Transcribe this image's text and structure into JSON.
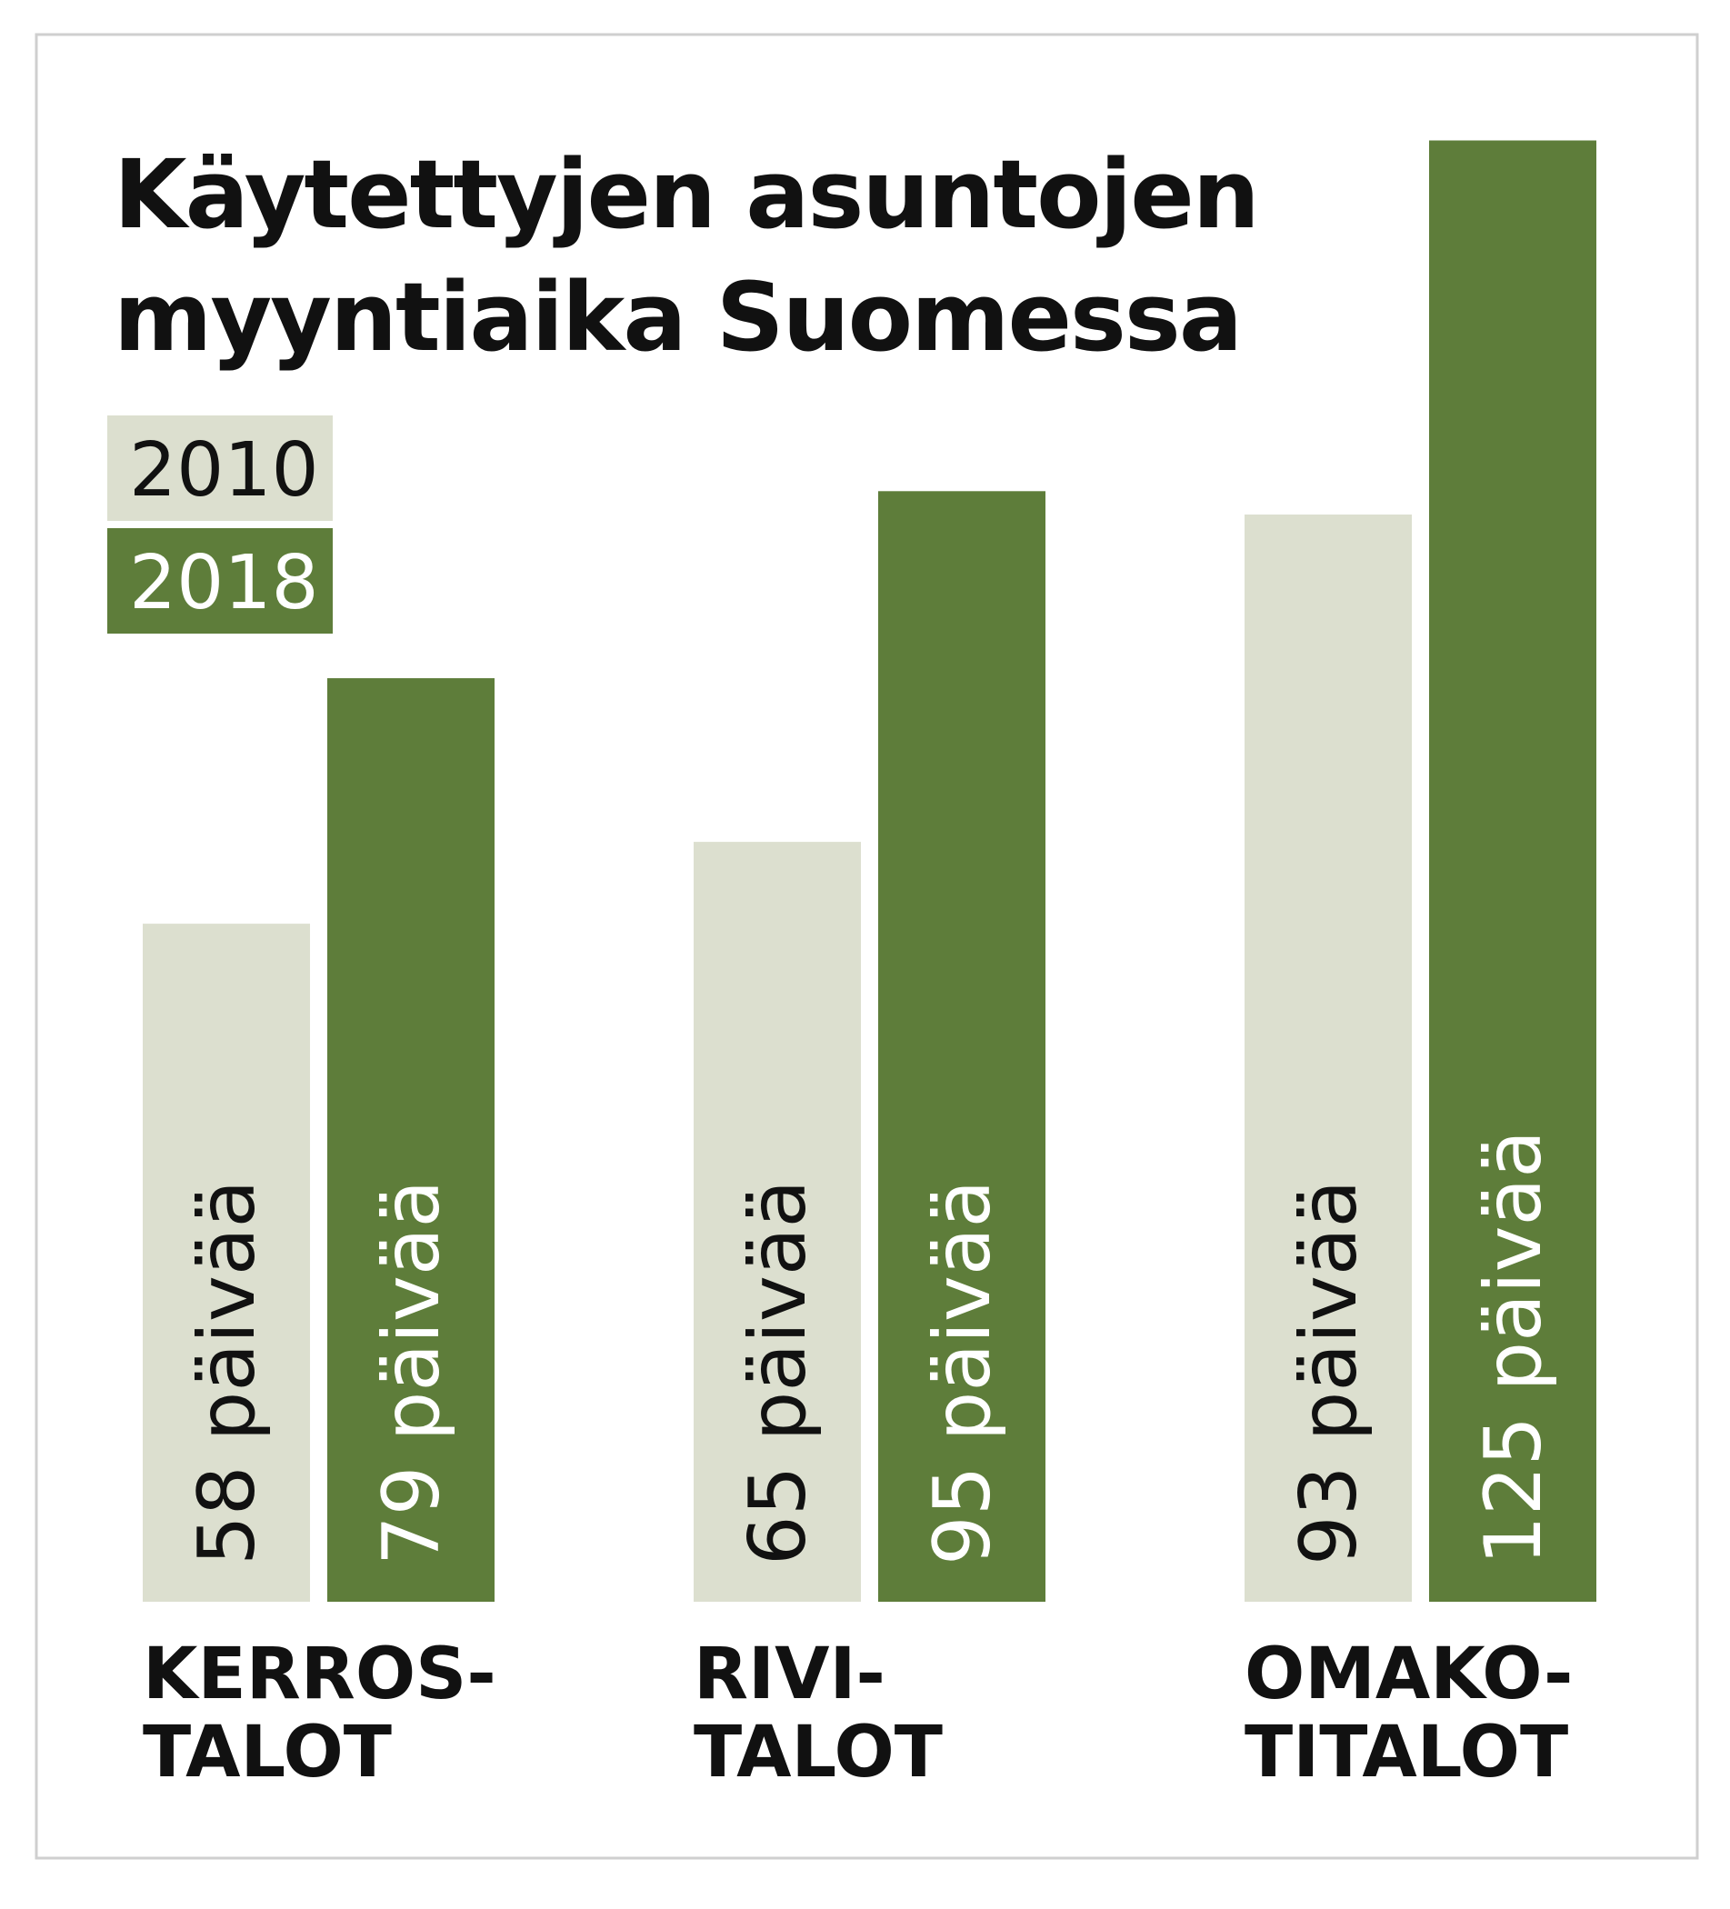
{
  "chart_data": {
    "type": "bar",
    "title": [
      "Käytettyjen asuntojen",
      "myyntiaika Suomessa"
    ],
    "categories": [
      [
        "KERROS-",
        "TALOT"
      ],
      [
        "RIVI-",
        "TALOT"
      ],
      [
        "OMAKO-",
        "TITALOT"
      ]
    ],
    "series": [
      {
        "name": "2010",
        "color": "#dcdfcf",
        "text_color": "#111111",
        "values": [
          58,
          65,
          93
        ],
        "value_labels": [
          "58 päivää",
          "65 päivää",
          "93 päivää"
        ]
      },
      {
        "name": "2018",
        "color": "#5e7d3a",
        "text_color": "#ffffff",
        "values": [
          79,
          95,
          125
        ],
        "value_labels": [
          "79 päivää",
          "95 päivää",
          "125 päivää"
        ]
      }
    ]
  }
}
